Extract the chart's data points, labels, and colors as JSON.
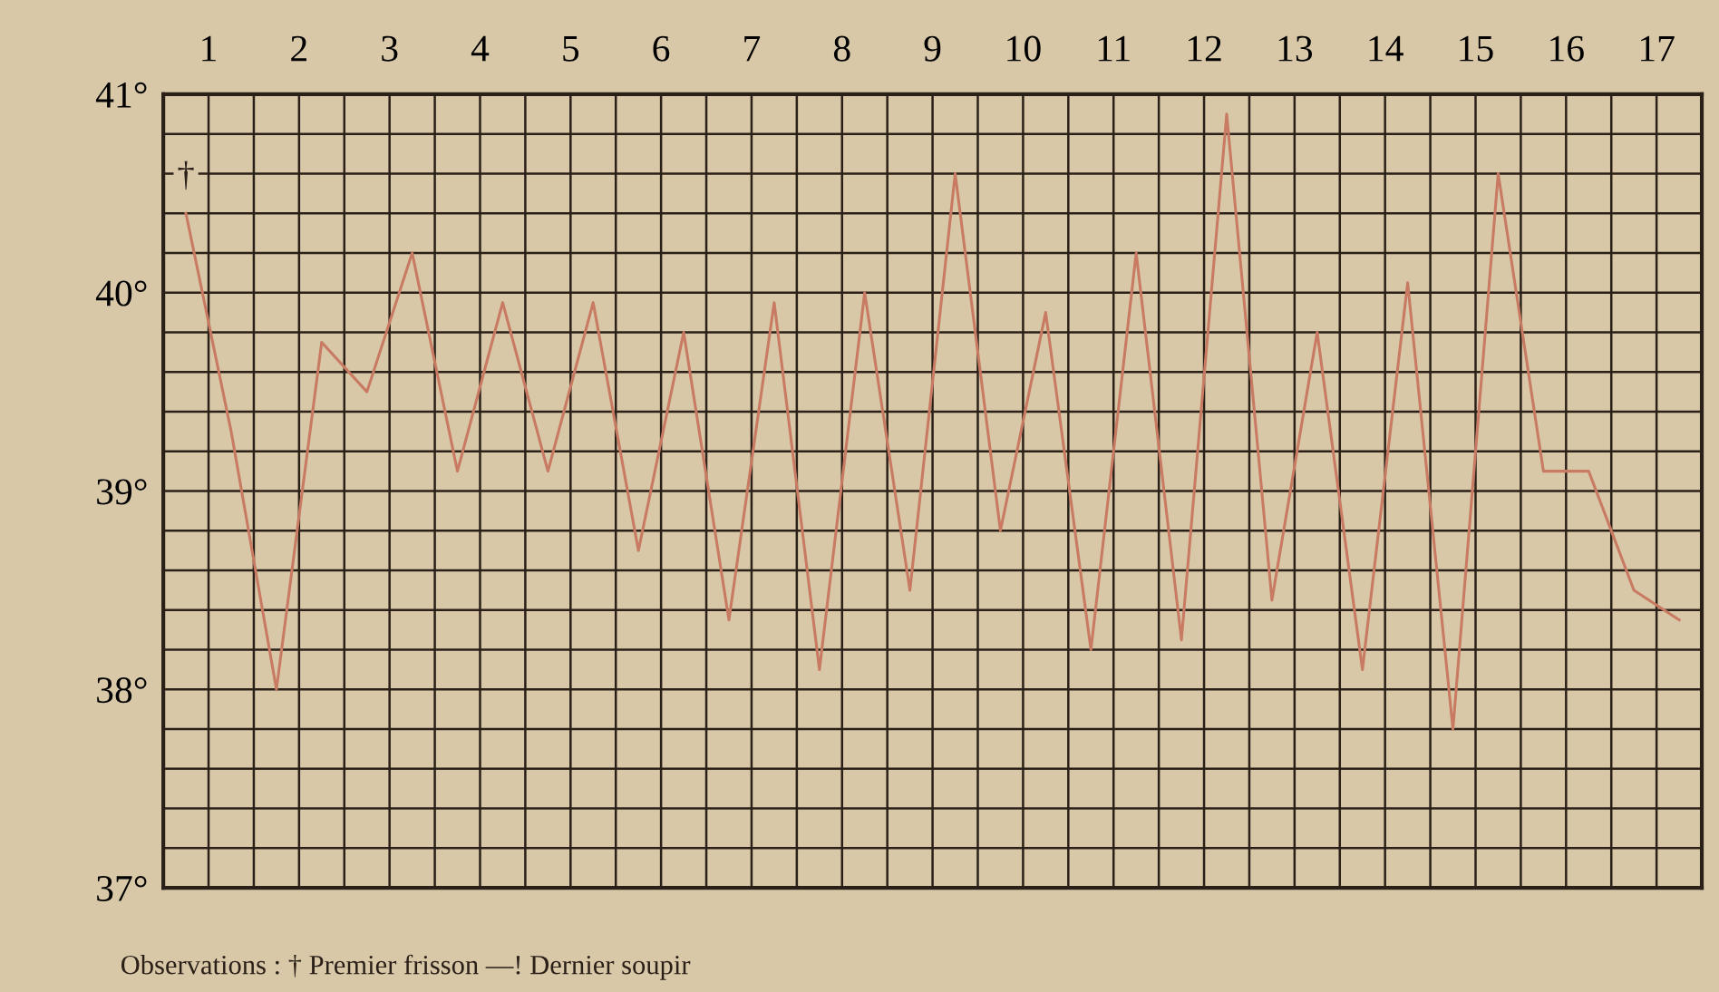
{
  "chart_data": {
    "type": "line",
    "x": [
      1,
      1.5,
      2,
      2.5,
      3,
      3.5,
      4,
      4.5,
      5,
      5.5,
      6,
      6.5,
      7,
      7.5,
      8,
      8.5,
      9,
      9.5,
      10,
      10.5,
      11,
      11.5,
      12,
      12.5,
      13,
      13.5,
      14,
      14.5,
      15,
      15.5,
      16,
      16.5,
      17,
      17.5
    ],
    "series": [
      {
        "color": "#c87a62",
        "values": [
          40.4,
          39.3,
          38.0,
          39.75,
          39.5,
          40.2,
          39.1,
          39.95,
          39.1,
          39.95,
          38.7,
          39.8,
          38.35,
          39.95,
          38.1,
          40.0,
          38.5,
          40.6,
          38.8,
          39.9,
          38.2,
          40.2,
          38.25,
          40.9,
          38.45,
          39.8,
          38.1,
          40.05,
          37.8,
          40.6,
          39.1,
          39.1,
          38.5,
          38.35
        ]
      }
    ],
    "xlim": [
      0.75,
      17.75
    ],
    "xticks": [
      {
        "value": 0.75,
        "label": null
      },
      {
        "value": 1.25,
        "label": "1"
      },
      {
        "value": 1.75,
        "label": null
      },
      {
        "value": 2.25,
        "label": "2"
      },
      {
        "value": 2.75,
        "label": null
      },
      {
        "value": 3.25,
        "label": "3"
      },
      {
        "value": 3.75,
        "label": null
      },
      {
        "value": 4.25,
        "label": "4"
      },
      {
        "value": 4.75,
        "label": null
      },
      {
        "value": 5.25,
        "label": "5"
      },
      {
        "value": 5.75,
        "label": null
      },
      {
        "value": 6.25,
        "label": "6"
      },
      {
        "value": 6.75,
        "label": null
      },
      {
        "value": 7.25,
        "label": "7"
      },
      {
        "value": 7.75,
        "label": null
      },
      {
        "value": 8.25,
        "label": "8"
      },
      {
        "value": 8.75,
        "label": null
      },
      {
        "value": 9.25,
        "label": "9"
      },
      {
        "value": 9.75,
        "label": null
      },
      {
        "value": 10.25,
        "label": "10"
      },
      {
        "value": 10.75,
        "label": null
      },
      {
        "value": 11.25,
        "label": "11"
      },
      {
        "value": 11.75,
        "label": null
      },
      {
        "value": 12.25,
        "label": "12"
      },
      {
        "value": 12.75,
        "label": null
      },
      {
        "value": 13.25,
        "label": "13"
      },
      {
        "value": 13.75,
        "label": null
      },
      {
        "value": 14.25,
        "label": "14"
      },
      {
        "value": 14.75,
        "label": null
      },
      {
        "value": 15.25,
        "label": "15"
      },
      {
        "value": 15.75,
        "label": null
      },
      {
        "value": 16.25,
        "label": "16"
      },
      {
        "value": 16.75,
        "label": null
      },
      {
        "value": 17.25,
        "label": "17"
      },
      {
        "value": 17.75,
        "label": null
      }
    ],
    "ylim": [
      37,
      41
    ],
    "yticks": [
      {
        "value": 37,
        "label": "37°"
      },
      {
        "value": 37.2,
        "label": null
      },
      {
        "value": 37.4,
        "label": null
      },
      {
        "value": 37.6,
        "label": null
      },
      {
        "value": 37.8,
        "label": null
      },
      {
        "value": 38,
        "label": "38°"
      },
      {
        "value": 38.2,
        "label": null
      },
      {
        "value": 38.4,
        "label": null
      },
      {
        "value": 38.6,
        "label": null
      },
      {
        "value": 38.8,
        "label": null
      },
      {
        "value": 39,
        "label": "39°"
      },
      {
        "value": 39.2,
        "label": null
      },
      {
        "value": 39.4,
        "label": null
      },
      {
        "value": 39.6,
        "label": null
      },
      {
        "value": 39.8,
        "label": null
      },
      {
        "value": 40,
        "label": "40°"
      },
      {
        "value": 40.2,
        "label": null
      },
      {
        "value": 40.4,
        "label": null
      },
      {
        "value": 40.6,
        "label": null
      },
      {
        "value": 40.8,
        "label": null
      },
      {
        "value": 41,
        "label": "41°"
      }
    ],
    "grid": true,
    "marker": "none",
    "line_style": "solid",
    "annotations": [
      {
        "text": "†",
        "x": 1,
        "y": 40.4
      },
      "Observations : † Premier frisson —! Dernier soupir"
    ]
  }
}
